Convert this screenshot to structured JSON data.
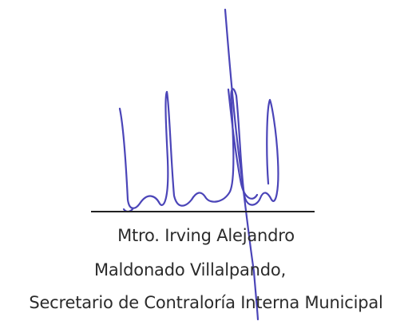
{
  "signature_block": {
    "name_line1": "Mtro. Irving Alejandro",
    "name_line2": "Maldonado Villalpando,",
    "position": "Secretario de Contraloría Interna Municipal"
  },
  "colors": {
    "ink": "#4b45b8",
    "text": "#2b2b2b",
    "line": "#222222"
  }
}
